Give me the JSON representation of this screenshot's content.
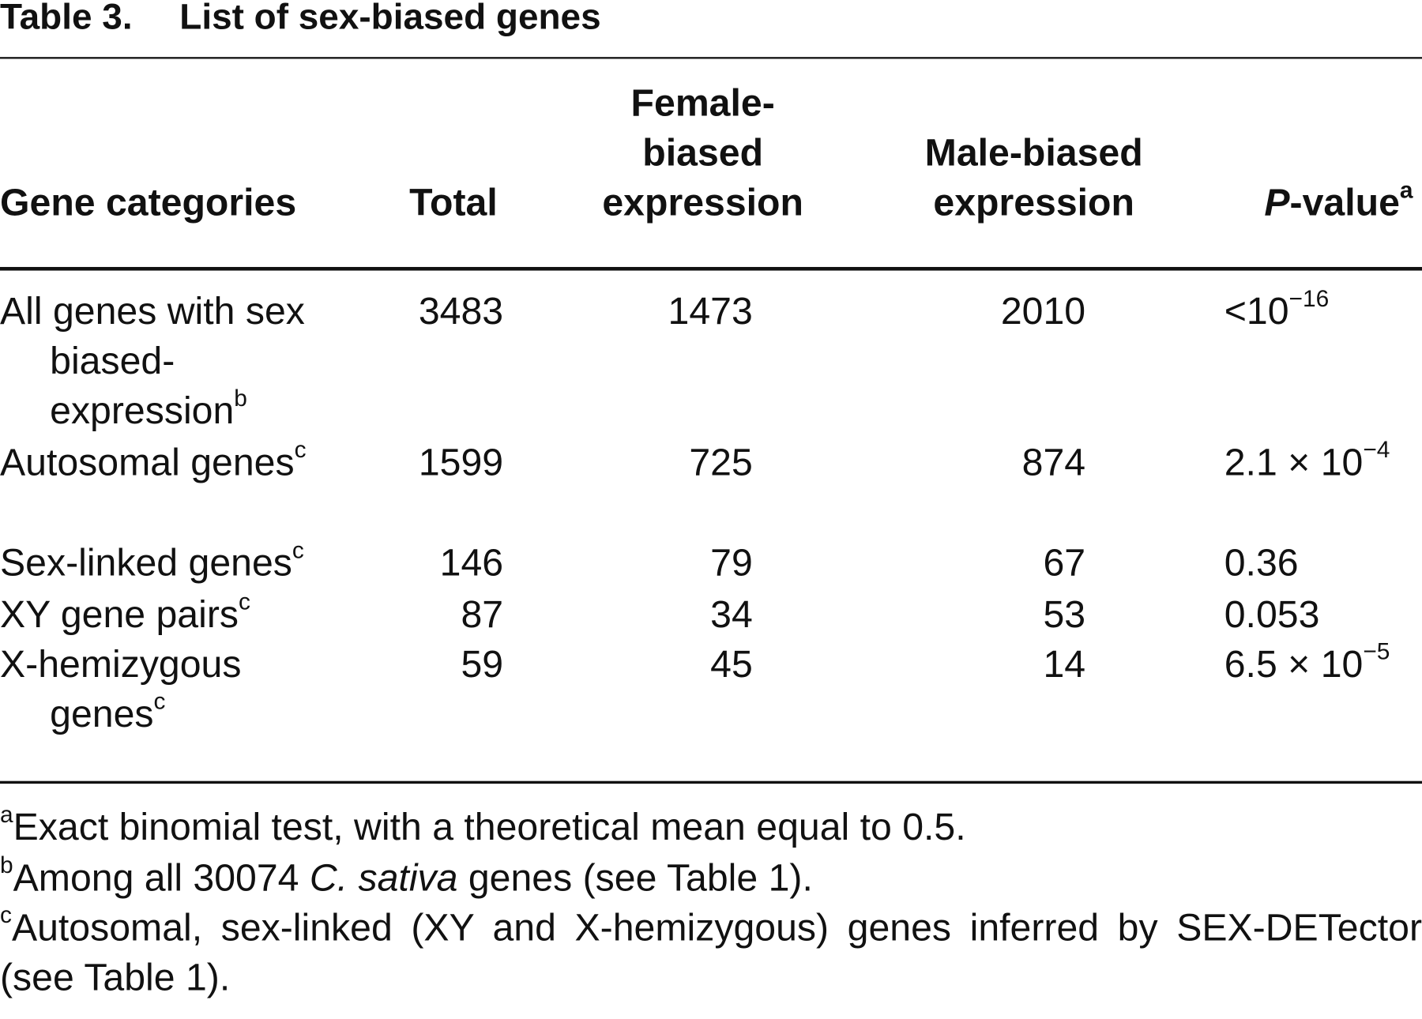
{
  "title": {
    "label": "Table 3.",
    "text": "List of sex-biased genes"
  },
  "table": {
    "columns": [
      "Gene categories",
      "Total",
      "Female-biased expression",
      "Male-biased expression",
      {
        "italic": "P",
        "text": "-value",
        "note": "a"
      }
    ],
    "rows": [
      {
        "category": "All genes with sex biased-expression",
        "note": "b",
        "total": 3483,
        "female": 1473,
        "male": 2010,
        "p_value": {
          "base": "<10",
          "exponent": "−16"
        }
      },
      {
        "category": "Autosomal genes",
        "note": "c",
        "total": 1599,
        "female": 725,
        "male": 874,
        "p_value": {
          "base": "2.1 × 10",
          "exponent": "−4"
        }
      },
      {
        "category": "Sex-linked genes",
        "note": "c",
        "total": 146,
        "female": 79,
        "male": 67,
        "p_value": 0.36
      },
      {
        "category": "XY gene pairs",
        "note": "c",
        "total": 87,
        "female": 34,
        "male": 53,
        "p_value": 0.053
      },
      {
        "category": "X-hemizygous genes",
        "note": "c",
        "total": 59,
        "female": 45,
        "male": 14,
        "p_value": {
          "base": "6.5 × 10",
          "exponent": "−5"
        }
      }
    ]
  },
  "footnotes": [
    {
      "mark": "a",
      "text": "Exact binomial test, with a theoretical mean equal to 0.5."
    },
    {
      "mark": "b",
      "before": "Among all 30074 ",
      "italic": "C. sativa",
      "after": " genes (see Table 1)."
    },
    {
      "mark": "c",
      "text": "Autosomal, sex-linked (XY and X-hemizygous) genes inferred by SEX-DETector (see Table 1)."
    }
  ]
}
